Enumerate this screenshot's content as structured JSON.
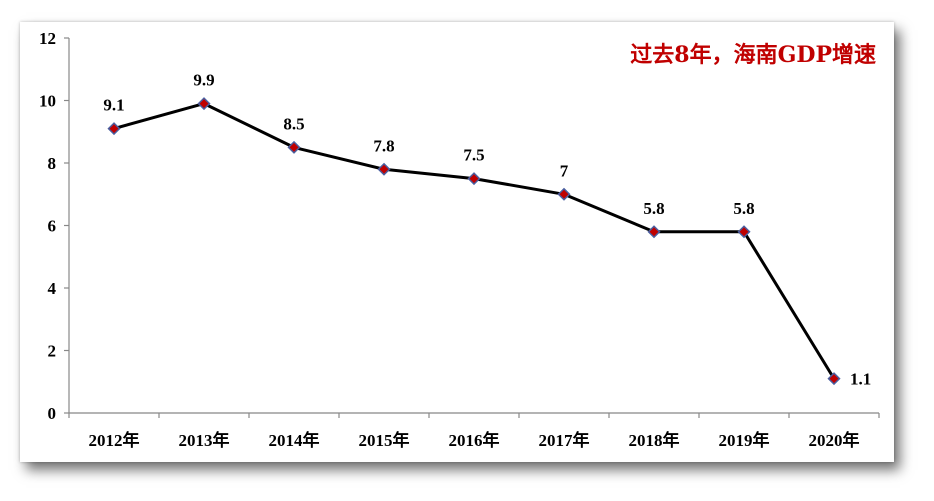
{
  "chart_data": {
    "type": "line",
    "title": "过去8年，海南GDP增速",
    "categories": [
      "2012年",
      "2013年",
      "2014年",
      "2015年",
      "2016年",
      "2017年",
      "2018年",
      "2019年",
      "2020年"
    ],
    "series": [
      {
        "values": [
          9.1,
          9.9,
          8.5,
          7.8,
          7.5,
          7,
          5.8,
          5.8,
          1.1
        ],
        "labels": [
          "9.1",
          "9.9",
          "8.5",
          "7.8",
          "7.5",
          "7",
          "5.8",
          "5.8",
          "1.1"
        ]
      }
    ],
    "ylim": [
      0,
      12
    ],
    "yticks": [
      "0",
      "2",
      "4",
      "6",
      "8",
      "10",
      "12"
    ],
    "grid": false,
    "colors": {
      "line": "#000000",
      "marker_fill": "#c00000",
      "marker_stroke": "#4a5fa0",
      "title": "#c00000"
    }
  }
}
